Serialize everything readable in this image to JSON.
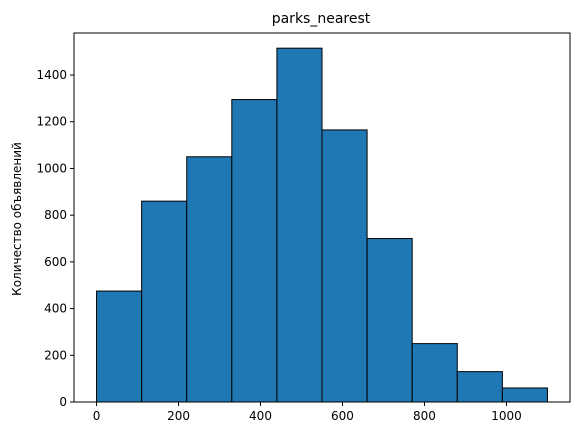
{
  "chart_data": {
    "type": "bar",
    "title": "parks_nearest",
    "xlabel": "",
    "ylabel": "Количество объявлений",
    "bin_edges": [
      0,
      110,
      220,
      330,
      440,
      550,
      660,
      770,
      880,
      990,
      1100
    ],
    "values": [
      475,
      860,
      1050,
      1295,
      1515,
      1165,
      700,
      250,
      130,
      60
    ],
    "xlim": [
      -55,
      1155
    ],
    "ylim": [
      0,
      1580
    ],
    "xticks": [
      0,
      200,
      400,
      600,
      800,
      1000
    ],
    "yticks": [
      0,
      200,
      400,
      600,
      800,
      1000,
      1200,
      1400
    ],
    "bar_color": "#1f77b4",
    "edge_color": "#000000",
    "grid": false
  }
}
